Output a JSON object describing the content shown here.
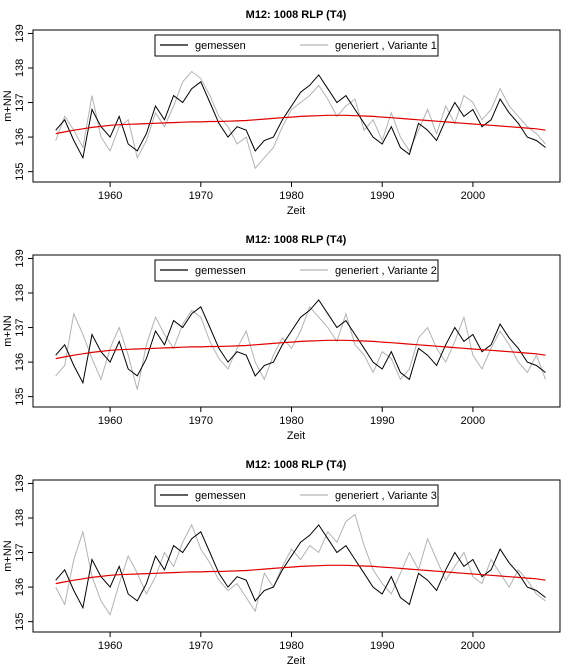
{
  "chart_data": [
    {
      "type": "line",
      "title": "M12: 1008 RLP (T4)",
      "x_label": "Zeit",
      "y_label": "m+NN",
      "x": [
        1954,
        1955,
        1956,
        1957,
        1958,
        1959,
        1960,
        1961,
        1962,
        1963,
        1964,
        1965,
        1966,
        1967,
        1968,
        1969,
        1970,
        1971,
        1972,
        1973,
        1974,
        1975,
        1976,
        1977,
        1978,
        1979,
        1980,
        1981,
        1982,
        1983,
        1984,
        1985,
        1986,
        1987,
        1988,
        1989,
        1990,
        1991,
        1992,
        1993,
        1994,
        1995,
        1996,
        1997,
        1998,
        1999,
        2000,
        2001,
        2002,
        2003,
        2004,
        2005,
        2006,
        2007,
        2008
      ],
      "xlim": [
        1951.5,
        2009.6
      ],
      "xticks": [
        1960,
        1970,
        1980,
        1990,
        2000
      ],
      "ylim": [
        134.7,
        139.1
      ],
      "yticks": [
        135,
        136,
        137,
        138,
        139
      ],
      "series": [
        {
          "name": "gemessen",
          "color": "#000000",
          "values": [
            136.2,
            136.5,
            135.9,
            135.4,
            136.8,
            136.3,
            136.0,
            136.6,
            135.8,
            135.6,
            136.1,
            136.9,
            136.5,
            137.2,
            137.0,
            137.4,
            137.6,
            137.0,
            136.4,
            136.0,
            136.3,
            136.2,
            135.6,
            135.9,
            136.0,
            136.5,
            136.9,
            137.3,
            137.5,
            137.8,
            137.4,
            137.0,
            137.2,
            136.8,
            136.4,
            136.0,
            135.8,
            136.3,
            135.7,
            135.5,
            136.4,
            136.2,
            135.9,
            136.5,
            137.0,
            136.6,
            136.8,
            136.3,
            136.5,
            137.1,
            136.7,
            136.4,
            136.0,
            135.9,
            135.7
          ]
        },
        {
          "name": "generiert , Variante 1",
          "color": "#b3b3b3",
          "values": [
            135.9,
            136.6,
            136.2,
            135.7,
            137.2,
            136.0,
            135.6,
            136.3,
            136.5,
            135.4,
            135.9,
            136.7,
            136.3,
            136.9,
            137.6,
            137.9,
            137.7,
            137.2,
            136.6,
            136.3,
            135.8,
            136.0,
            135.1,
            135.4,
            135.7,
            136.3,
            136.8,
            137.0,
            137.2,
            137.5,
            137.1,
            136.6,
            136.9,
            137.1,
            136.2,
            136.5,
            135.9,
            136.7,
            136.0,
            135.6,
            136.2,
            136.8,
            136.1,
            136.9,
            136.4,
            137.2,
            137.0,
            136.5,
            136.8,
            137.4,
            136.9,
            136.6,
            136.3,
            136.1,
            135.8
          ]
        }
      ],
      "trend": {
        "color": "#e00000",
        "values": [
          136.1,
          136.15,
          136.2,
          136.24,
          136.28,
          136.31,
          136.34,
          136.36,
          136.37,
          136.38,
          136.39,
          136.4,
          136.41,
          136.42,
          136.43,
          136.44,
          136.44,
          136.45,
          136.45,
          136.46,
          136.47,
          136.48,
          136.5,
          136.52,
          136.54,
          136.56,
          136.58,
          136.6,
          136.61,
          136.62,
          136.63,
          136.63,
          136.63,
          136.62,
          136.61,
          136.6,
          136.58,
          136.56,
          136.54,
          136.52,
          136.5,
          136.48,
          136.46,
          136.44,
          136.42,
          136.4,
          136.38,
          136.36,
          136.34,
          136.32,
          136.3,
          136.28,
          136.26,
          136.24,
          136.2
        ]
      }
    },
    {
      "type": "line",
      "title": "M12: 1008 RLP (T4)",
      "x_label": "Zeit",
      "y_label": "m+NN",
      "x": [
        1954,
        1955,
        1956,
        1957,
        1958,
        1959,
        1960,
        1961,
        1962,
        1963,
        1964,
        1965,
        1966,
        1967,
        1968,
        1969,
        1970,
        1971,
        1972,
        1973,
        1974,
        1975,
        1976,
        1977,
        1978,
        1979,
        1980,
        1981,
        1982,
        1983,
        1984,
        1985,
        1986,
        1987,
        1988,
        1989,
        1990,
        1991,
        1992,
        1993,
        1994,
        1995,
        1996,
        1997,
        1998,
        1999,
        2000,
        2001,
        2002,
        2003,
        2004,
        2005,
        2006,
        2007,
        2008
      ],
      "xlim": [
        1951.5,
        2009.6
      ],
      "xticks": [
        1960,
        1970,
        1980,
        1990,
        2000
      ],
      "ylim": [
        134.7,
        139.1
      ],
      "yticks": [
        135,
        136,
        137,
        138,
        139
      ],
      "series": [
        {
          "name": "gemessen",
          "color": "#000000",
          "values": [
            136.2,
            136.5,
            135.9,
            135.4,
            136.8,
            136.3,
            136.0,
            136.6,
            135.8,
            135.6,
            136.1,
            136.9,
            136.5,
            137.2,
            137.0,
            137.4,
            137.6,
            137.0,
            136.4,
            136.0,
            136.3,
            136.2,
            135.6,
            135.9,
            136.0,
            136.5,
            136.9,
            137.3,
            137.5,
            137.8,
            137.4,
            137.0,
            137.2,
            136.8,
            136.4,
            136.0,
            135.8,
            136.3,
            135.7,
            135.5,
            136.4,
            136.2,
            135.9,
            136.5,
            137.0,
            136.6,
            136.8,
            136.3,
            136.5,
            137.1,
            136.7,
            136.4,
            136.0,
            135.9,
            135.7
          ]
        },
        {
          "name": "generiert , Variante 2",
          "color": "#b3b3b3",
          "values": [
            135.6,
            135.9,
            137.4,
            136.8,
            136.1,
            135.5,
            136.4,
            137.0,
            136.2,
            135.2,
            136.5,
            137.3,
            136.8,
            136.4,
            137.1,
            137.5,
            137.3,
            136.6,
            136.1,
            135.8,
            136.4,
            136.9,
            136.0,
            135.5,
            136.2,
            136.7,
            136.4,
            136.9,
            137.6,
            137.3,
            137.0,
            136.6,
            137.4,
            136.5,
            136.2,
            135.7,
            136.3,
            136.1,
            135.5,
            135.8,
            136.7,
            137.0,
            136.4,
            136.0,
            136.6,
            137.3,
            136.2,
            135.8,
            136.4,
            136.9,
            136.5,
            136.0,
            135.7,
            136.2,
            135.5
          ]
        }
      ],
      "trend": {
        "color": "#e00000",
        "values": [
          136.1,
          136.15,
          136.2,
          136.24,
          136.28,
          136.31,
          136.34,
          136.36,
          136.37,
          136.38,
          136.39,
          136.4,
          136.41,
          136.42,
          136.43,
          136.44,
          136.44,
          136.45,
          136.45,
          136.46,
          136.47,
          136.48,
          136.5,
          136.52,
          136.54,
          136.56,
          136.58,
          136.6,
          136.61,
          136.62,
          136.63,
          136.63,
          136.63,
          136.62,
          136.61,
          136.6,
          136.58,
          136.56,
          136.54,
          136.52,
          136.5,
          136.48,
          136.46,
          136.44,
          136.42,
          136.4,
          136.38,
          136.36,
          136.34,
          136.32,
          136.3,
          136.28,
          136.26,
          136.24,
          136.2
        ]
      }
    },
    {
      "type": "line",
      "title": "M12: 1008 RLP (T4)",
      "x_label": "Zeit",
      "y_label": "m+NN",
      "x": [
        1954,
        1955,
        1956,
        1957,
        1958,
        1959,
        1960,
        1961,
        1962,
        1963,
        1964,
        1965,
        1966,
        1967,
        1968,
        1969,
        1970,
        1971,
        1972,
        1973,
        1974,
        1975,
        1976,
        1977,
        1978,
        1979,
        1980,
        1981,
        1982,
        1983,
        1984,
        1985,
        1986,
        1987,
        1988,
        1989,
        1990,
        1991,
        1992,
        1993,
        1994,
        1995,
        1996,
        1997,
        1998,
        1999,
        2000,
        2001,
        2002,
        2003,
        2004,
        2005,
        2006,
        2007,
        2008
      ],
      "xlim": [
        1951.5,
        2009.6
      ],
      "xticks": [
        1960,
        1970,
        1980,
        1990,
        2000
      ],
      "ylim": [
        134.7,
        139.1
      ],
      "yticks": [
        135,
        136,
        137,
        138,
        139
      ],
      "series": [
        {
          "name": "gemessen",
          "color": "#000000",
          "values": [
            136.2,
            136.5,
            135.9,
            135.4,
            136.8,
            136.3,
            136.0,
            136.6,
            135.8,
            135.6,
            136.1,
            136.9,
            136.5,
            137.2,
            137.0,
            137.4,
            137.6,
            137.0,
            136.4,
            136.0,
            136.3,
            136.2,
            135.6,
            135.9,
            136.0,
            136.5,
            136.9,
            137.3,
            137.5,
            137.8,
            137.4,
            137.0,
            137.2,
            136.8,
            136.4,
            136.0,
            135.8,
            136.3,
            135.7,
            135.5,
            136.4,
            136.2,
            135.9,
            136.5,
            137.0,
            136.6,
            136.8,
            136.3,
            136.5,
            137.1,
            136.7,
            136.4,
            136.0,
            135.9,
            135.7
          ]
        },
        {
          "name": "generiert , Variante 3",
          "color": "#b3b3b3",
          "values": [
            136.0,
            135.5,
            136.8,
            137.6,
            136.3,
            135.6,
            135.2,
            136.1,
            136.9,
            136.4,
            135.8,
            136.3,
            137.0,
            136.6,
            137.3,
            137.8,
            137.1,
            136.7,
            136.2,
            135.9,
            136.1,
            135.7,
            135.3,
            136.4,
            136.0,
            136.6,
            137.1,
            136.8,
            137.2,
            137.0,
            137.6,
            137.3,
            137.9,
            138.1,
            137.2,
            136.5,
            136.1,
            135.8,
            136.4,
            137.0,
            136.5,
            137.4,
            136.8,
            136.2,
            136.6,
            137.0,
            136.3,
            136.1,
            136.8,
            136.4,
            136.0,
            136.5,
            136.2,
            135.8,
            135.6
          ]
        }
      ],
      "trend": {
        "color": "#e00000",
        "values": [
          136.1,
          136.15,
          136.2,
          136.24,
          136.28,
          136.31,
          136.34,
          136.36,
          136.37,
          136.38,
          136.39,
          136.4,
          136.41,
          136.42,
          136.43,
          136.44,
          136.44,
          136.45,
          136.45,
          136.46,
          136.47,
          136.48,
          136.5,
          136.52,
          136.54,
          136.56,
          136.58,
          136.6,
          136.61,
          136.62,
          136.63,
          136.63,
          136.63,
          136.62,
          136.61,
          136.6,
          136.58,
          136.56,
          136.54,
          136.52,
          136.5,
          136.48,
          136.46,
          136.44,
          136.42,
          136.4,
          136.38,
          136.36,
          136.34,
          136.32,
          136.3,
          136.28,
          136.26,
          136.24,
          136.2
        ]
      }
    }
  ]
}
